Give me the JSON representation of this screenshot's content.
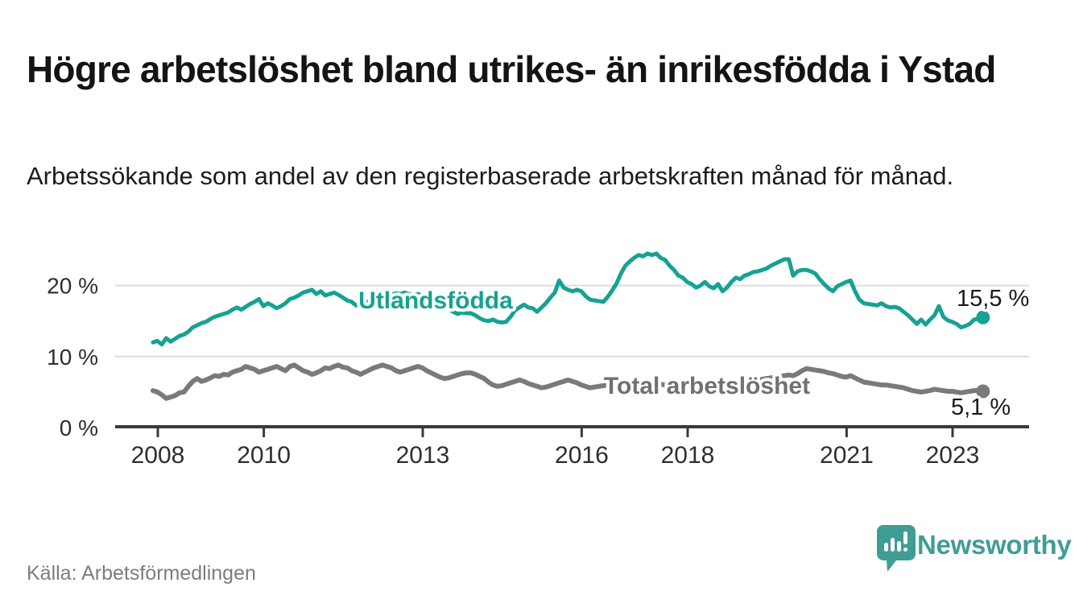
{
  "header": {
    "title": "Högre arbetslöshet bland utrikes- än inrikesfödda i Ystad",
    "subtitle": "Arbetssökande som andel av den registerbaserade arbetskraften månad för månad."
  },
  "footer": {
    "source": "Källa: Arbetsförmedlingen",
    "brand": "Newsworthy",
    "logo_icon": "bar-chart-speech-bubble-icon"
  },
  "colors": {
    "series_teal": "#16a292",
    "series_gray": "#7a7a7a",
    "label_gray": "#717171",
    "grid": "#dcdcdc",
    "axis": "#3a3a3a",
    "text": "#1a1a1a",
    "muted_text": "#7d7d7d",
    "brand_teal": "#3f9d94",
    "background": "#ffffff"
  },
  "chart_data": {
    "type": "line",
    "unit": "%",
    "frequency": "monthly",
    "x_start": "2008-01",
    "x_end": "2023-09",
    "grid": "horizontal",
    "legend": "inline-labels",
    "ylim": [
      0,
      26
    ],
    "yticks": [
      {
        "label": "0 %",
        "value": 0
      },
      {
        "label": "10 %",
        "value": 10
      },
      {
        "label": "20 %",
        "value": 20
      }
    ],
    "xticks": [
      {
        "label": "2008",
        "year": 2008
      },
      {
        "label": "2010",
        "year": 2010
      },
      {
        "label": "2013",
        "year": 2013
      },
      {
        "label": "2016",
        "year": 2016
      },
      {
        "label": "2018",
        "year": 2018
      },
      {
        "label": "2021",
        "year": 2021
      },
      {
        "label": "2023",
        "year": 2023
      }
    ],
    "series": [
      {
        "name": "Utlandsfödda",
        "color": "#16a292",
        "end_label": "15,5 %",
        "end_value": 15.5,
        "values": [
          12.0,
          12.2,
          11.7,
          12.6,
          12.1,
          12.5,
          12.9,
          13.1,
          13.5,
          14.1,
          14.4,
          14.7,
          14.9,
          15.3,
          15.6,
          15.8,
          16.0,
          16.2,
          16.6,
          16.9,
          16.6,
          17.0,
          17.4,
          17.7,
          18.1,
          17.1,
          17.5,
          17.2,
          16.8,
          17.1,
          17.5,
          18.1,
          18.3,
          18.6,
          19.0,
          19.2,
          19.4,
          18.8,
          19.2,
          18.6,
          18.8,
          19.0,
          18.7,
          18.3,
          17.9,
          17.7,
          17.2,
          17.5,
          17.4,
          17.9,
          18.5,
          19.0,
          18.8,
          18.9,
          18.7,
          18.9,
          18.8,
          19.0,
          18.8,
          18.7,
          18.8,
          18.6,
          18.4,
          18.0,
          17.7,
          17.4,
          17.1,
          16.7,
          16.3,
          16.0,
          16.2,
          16.1,
          16.1,
          15.8,
          15.4,
          15.1,
          15.0,
          15.2,
          14.9,
          14.8,
          14.9,
          15.6,
          16.5,
          16.9,
          17.3,
          16.9,
          16.8,
          16.3,
          16.9,
          17.5,
          18.3,
          19.0,
          20.7,
          19.7,
          19.4,
          19.2,
          19.4,
          19.2,
          18.5,
          18.0,
          17.9,
          17.8,
          17.7,
          18.4,
          19.3,
          20.3,
          21.7,
          22.8,
          23.4,
          23.9,
          24.3,
          24.1,
          24.5,
          24.3,
          24.5,
          23.9,
          23.6,
          22.8,
          22.2,
          21.4,
          21.1,
          20.5,
          20.2,
          19.7,
          20.0,
          20.5,
          19.9,
          19.6,
          20.2,
          19.2,
          19.7,
          20.5,
          21.1,
          20.9,
          21.4,
          21.6,
          21.9,
          22.0,
          22.2,
          22.4,
          22.8,
          23.1,
          23.4,
          23.7,
          23.7,
          21.4,
          22.0,
          22.2,
          22.2,
          22.0,
          21.7,
          20.9,
          20.2,
          19.6,
          19.2,
          19.9,
          20.2,
          20.5,
          20.7,
          19.2,
          18.0,
          17.5,
          17.4,
          17.3,
          17.2,
          17.5,
          17.1,
          16.9,
          17.0,
          16.8,
          16.3,
          15.8,
          15.2,
          14.6,
          15.2,
          14.5,
          15.2,
          15.8,
          17.1,
          15.6,
          15.1,
          14.9,
          14.6,
          14.1,
          14.3,
          14.6,
          15.2,
          15.3,
          15.5
        ]
      },
      {
        "name": "Total arbetslöshet",
        "color": "#7a7a7a",
        "end_label": "5,1 %",
        "end_value": 5.1,
        "values": [
          5.2,
          5.0,
          4.6,
          4.1,
          4.3,
          4.5,
          4.9,
          5.0,
          5.8,
          6.5,
          6.9,
          6.5,
          6.7,
          7.0,
          7.3,
          7.2,
          7.5,
          7.4,
          7.8,
          8.0,
          8.2,
          8.6,
          8.4,
          8.2,
          7.8,
          8.0,
          8.2,
          8.4,
          8.6,
          8.3,
          8.0,
          8.6,
          8.8,
          8.4,
          8.0,
          7.8,
          7.5,
          7.7,
          8.0,
          8.4,
          8.3,
          8.6,
          8.8,
          8.5,
          8.4,
          8.0,
          7.8,
          7.5,
          7.8,
          8.1,
          8.4,
          8.6,
          8.8,
          8.6,
          8.4,
          8.0,
          7.8,
          8.0,
          8.2,
          8.4,
          8.6,
          8.4,
          8.0,
          7.7,
          7.4,
          7.1,
          6.9,
          7.0,
          7.2,
          7.4,
          7.6,
          7.7,
          7.7,
          7.5,
          7.2,
          6.9,
          6.4,
          6.0,
          5.8,
          5.9,
          6.1,
          6.3,
          6.5,
          6.7,
          6.5,
          6.2,
          6.0,
          5.8,
          5.6,
          5.7,
          5.9,
          6.1,
          6.3,
          6.5,
          6.7,
          6.5,
          6.3,
          6.0,
          5.8,
          5.6,
          5.7,
          5.8,
          5.9,
          6.0,
          6.1,
          6.2,
          6.1,
          6.2,
          6.2,
          6.3,
          6.2,
          6.1,
          6.0,
          6.1,
          6.2,
          6.1,
          6.0,
          6.1,
          6.2,
          6.3,
          6.2,
          6.1,
          6.0,
          6.1,
          6.2,
          6.1,
          6.0,
          6.1,
          6.2,
          6.3,
          6.4,
          6.3,
          6.2,
          6.3,
          6.4,
          6.5,
          6.6,
          6.7,
          6.8,
          6.9,
          7.0,
          7.1,
          7.2,
          7.3,
          7.4,
          7.3,
          7.6,
          8.0,
          8.3,
          8.2,
          8.1,
          8.0,
          7.9,
          7.7,
          7.6,
          7.4,
          7.2,
          7.1,
          7.3,
          7.0,
          6.7,
          6.4,
          6.3,
          6.2,
          6.1,
          6.0,
          6.0,
          5.9,
          5.8,
          5.7,
          5.6,
          5.4,
          5.2,
          5.1,
          5.0,
          5.1,
          5.2,
          5.4,
          5.3,
          5.2,
          5.1,
          5.1,
          5.0,
          4.9,
          5.0,
          5.1,
          5.2,
          5.2,
          5.1
        ]
      }
    ]
  }
}
